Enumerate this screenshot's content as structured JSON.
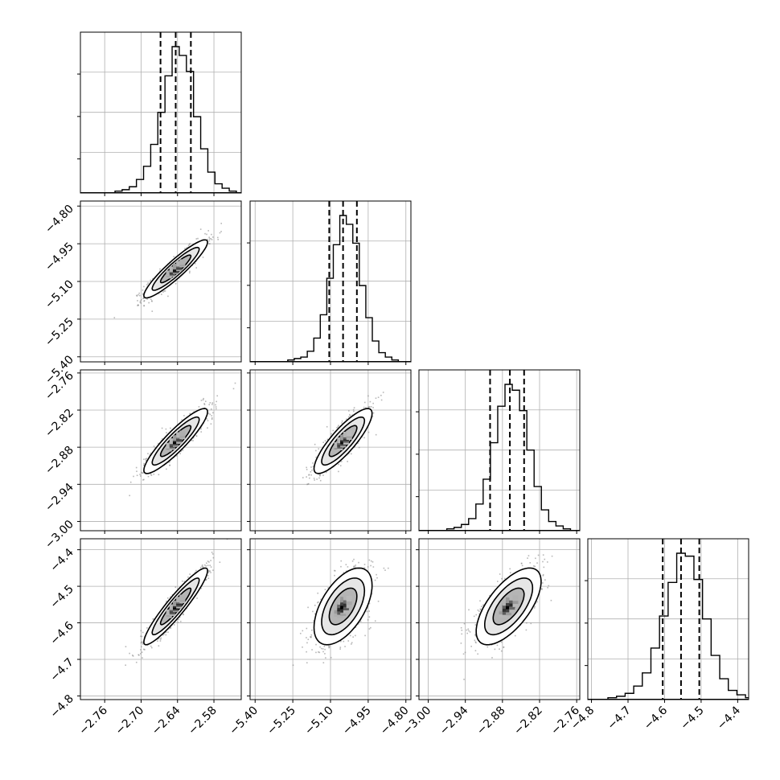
{
  "chart_data": {
    "type": "corner",
    "grid": true,
    "parameters": [
      {
        "range": [
          -2.8,
          -2.535
        ],
        "ticks": [
          "-2.76",
          "-2.70",
          "-2.64",
          "-2.58"
        ],
        "tick_values": [
          -2.76,
          -2.7,
          -2.64,
          -2.58
        ],
        "quantiles": [
          -2.668,
          -2.643,
          -2.618
        ],
        "mean": -2.643,
        "sd": 0.025
      },
      {
        "range": [
          -5.42,
          -4.78
        ],
        "ticks": [
          "-5.40",
          "-5.25",
          "-5.10",
          "-4.95",
          "-4.80"
        ],
        "tick_values": [
          -5.4,
          -5.25,
          -5.1,
          -4.95,
          -4.8
        ],
        "quantiles": [
          -5.105,
          -5.05,
          -4.995
        ],
        "mean": -5.05,
        "sd": 0.055
      },
      {
        "range": [
          -3.015,
          -2.755
        ],
        "ticks": [
          "-3.00",
          "-2.94",
          "-2.88",
          "-2.82",
          "-2.76"
        ],
        "tick_values": [
          -3.0,
          -2.94,
          -2.88,
          -2.82,
          -2.76
        ],
        "quantiles": [
          -2.9,
          -2.868,
          -2.845
        ],
        "mean": -2.87,
        "sd": 0.025
      },
      {
        "range": [
          -4.81,
          -4.37
        ],
        "ticks": [
          "-4.8",
          "-4.7",
          "-4.6",
          "-4.5",
          "-4.4"
        ],
        "tick_values": [
          -4.8,
          -4.7,
          -4.6,
          -4.5,
          -4.4
        ],
        "quantiles": [
          -4.605,
          -4.555,
          -4.505
        ],
        "mean": -4.555,
        "sd": 0.05
      }
    ],
    "histograms": [
      {
        "counts": [
          1,
          2,
          4,
          9,
          18,
          33,
          55,
          80,
          100,
          94,
          83,
          52,
          30,
          14,
          6,
          3,
          1
        ]
      },
      {
        "counts": [
          1,
          2,
          3,
          7,
          16,
          32,
          57,
          80,
          100,
          94,
          81,
          52,
          30,
          14,
          6,
          3,
          1
        ]
      },
      {
        "counts": [
          1,
          2,
          4,
          8,
          18,
          35,
          60,
          85,
          100,
          96,
          82,
          55,
          30,
          14,
          6,
          3,
          1
        ]
      },
      {
        "counts": [
          1,
          2,
          4,
          9,
          18,
          35,
          57,
          80,
          100,
          98,
          82,
          55,
          30,
          14,
          6,
          3,
          1
        ]
      }
    ],
    "correlations": [
      {
        "pair": [
          0,
          1
        ],
        "rho": 0.92
      },
      {
        "pair": [
          0,
          2
        ],
        "rho": 0.9
      },
      {
        "pair": [
          1,
          2
        ],
        "rho": 0.85
      },
      {
        "pair": [
          0,
          3
        ],
        "rho": 0.93
      },
      {
        "pair": [
          1,
          3
        ],
        "rho": 0.55
      },
      {
        "pair": [
          2,
          3
        ],
        "rho": 0.65
      }
    ],
    "contour_levels": [
      0.5,
      1.0,
      1.5,
      2.0
    ],
    "colors": {
      "contour": "#000000",
      "density_dark": "#000000",
      "density_light": "#ffffff",
      "points": "#888888",
      "grid": "#b0b0b0"
    }
  }
}
